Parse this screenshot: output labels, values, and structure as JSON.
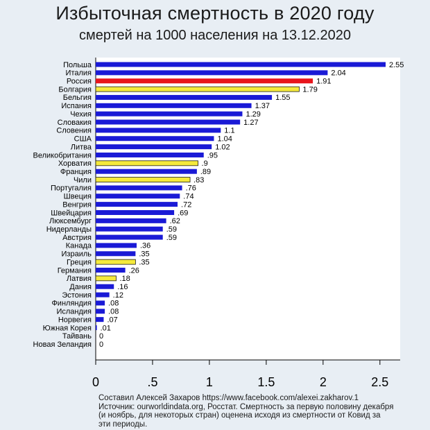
{
  "title": "Избыточная смертность в 2020 году",
  "subtitle": "смертей на 1000 населения на 13.12.2020",
  "footnote": {
    "line1": "Составил Алексей Захаров https://www.facebook.com/alexei.zakharov.1",
    "line2": "Источник: ourworldindata.org, Росстат. Смертность за первую половину декабря",
    "line3": "(и ноябрь, для некоторых стран) оценена исходя из смертности от Ковид за",
    "line4": "эти периоды."
  },
  "colors": {
    "background": "#e8eef4",
    "plot_background": "#ffffff",
    "default_bar": "#1a1ad6",
    "highlight_red": "#e8161c",
    "highlight_yellow": "#f5ea3c"
  },
  "chart_data": {
    "type": "bar",
    "orientation": "horizontal",
    "title": "Избыточная смертность в 2020 году",
    "subtitle": "смертей на 1000 населения на 13.12.2020",
    "xlim": [
      0,
      2.7
    ],
    "xticks": [
      {
        "value": 0,
        "label": "0"
      },
      {
        "value": 0.5,
        "label": ".5"
      },
      {
        "value": 1,
        "label": "1"
      },
      {
        "value": 1.5,
        "label": "1.5"
      },
      {
        "value": 2,
        "label": "2"
      },
      {
        "value": 2.5,
        "label": "2.5"
      }
    ],
    "bars": [
      {
        "category": "Польша",
        "value": 2.55,
        "label": "2.55",
        "color": "blue"
      },
      {
        "category": "Италия",
        "value": 2.04,
        "label": "2.04",
        "color": "blue"
      },
      {
        "category": "Россия",
        "value": 1.91,
        "label": "1.91",
        "color": "red"
      },
      {
        "category": "Болгария",
        "value": 1.79,
        "label": "1.79",
        "color": "yellow"
      },
      {
        "category": "Бельгия",
        "value": 1.55,
        "label": "1.55",
        "color": "blue"
      },
      {
        "category": "Испания",
        "value": 1.37,
        "label": "1.37",
        "color": "blue"
      },
      {
        "category": "Чехия",
        "value": 1.29,
        "label": "1.29",
        "color": "blue"
      },
      {
        "category": "Словакия",
        "value": 1.27,
        "label": "1.27",
        "color": "blue"
      },
      {
        "category": "Словения",
        "value": 1.1,
        "label": "1.1",
        "color": "blue"
      },
      {
        "category": "США",
        "value": 1.04,
        "label": "1.04",
        "color": "blue"
      },
      {
        "category": "Литва",
        "value": 1.02,
        "label": "1.02",
        "color": "blue"
      },
      {
        "category": "Великобритания",
        "value": 0.95,
        "label": ".95",
        "color": "blue"
      },
      {
        "category": "Хорватия",
        "value": 0.9,
        "label": ".9",
        "color": "yellow"
      },
      {
        "category": "Франция",
        "value": 0.89,
        "label": ".89",
        "color": "blue"
      },
      {
        "category": "Чили",
        "value": 0.83,
        "label": ".83",
        "color": "yellow"
      },
      {
        "category": "Португалия",
        "value": 0.76,
        "label": ".76",
        "color": "blue"
      },
      {
        "category": "Швеция",
        "value": 0.74,
        "label": ".74",
        "color": "blue"
      },
      {
        "category": "Венгрия",
        "value": 0.72,
        "label": ".72",
        "color": "blue"
      },
      {
        "category": "Швейцария",
        "value": 0.69,
        "label": ".69",
        "color": "blue"
      },
      {
        "category": "Люксембург",
        "value": 0.62,
        "label": ".62",
        "color": "blue"
      },
      {
        "category": "Нидерланды",
        "value": 0.59,
        "label": ".59",
        "color": "blue"
      },
      {
        "category": "Австрия",
        "value": 0.59,
        "label": ".59",
        "color": "blue"
      },
      {
        "category": "Канада",
        "value": 0.36,
        "label": ".36",
        "color": "blue"
      },
      {
        "category": "Израиль",
        "value": 0.35,
        "label": ".35",
        "color": "blue"
      },
      {
        "category": "Греция",
        "value": 0.35,
        "label": ".35",
        "color": "yellow"
      },
      {
        "category": "Германия",
        "value": 0.26,
        "label": ".26",
        "color": "blue"
      },
      {
        "category": "Латвия",
        "value": 0.18,
        "label": ".18",
        "color": "yellow"
      },
      {
        "category": "Дания",
        "value": 0.16,
        "label": ".16",
        "color": "blue"
      },
      {
        "category": "Эстония",
        "value": 0.12,
        "label": ".12",
        "color": "blue"
      },
      {
        "category": "Финляндия",
        "value": 0.08,
        "label": ".08",
        "color": "blue"
      },
      {
        "category": "Исландия",
        "value": 0.08,
        "label": ".08",
        "color": "blue"
      },
      {
        "category": "Норвегия",
        "value": 0.07,
        "label": ".07",
        "color": "blue"
      },
      {
        "category": "Южная Корея",
        "value": 0.01,
        "label": ".01",
        "color": "blue"
      },
      {
        "category": "Тайвань",
        "value": 0,
        "label": "0",
        "color": "blue"
      },
      {
        "category": "Новая Зеландия",
        "value": 0,
        "label": "0",
        "color": "blue"
      }
    ],
    "grid": false,
    "legend": "none"
  }
}
